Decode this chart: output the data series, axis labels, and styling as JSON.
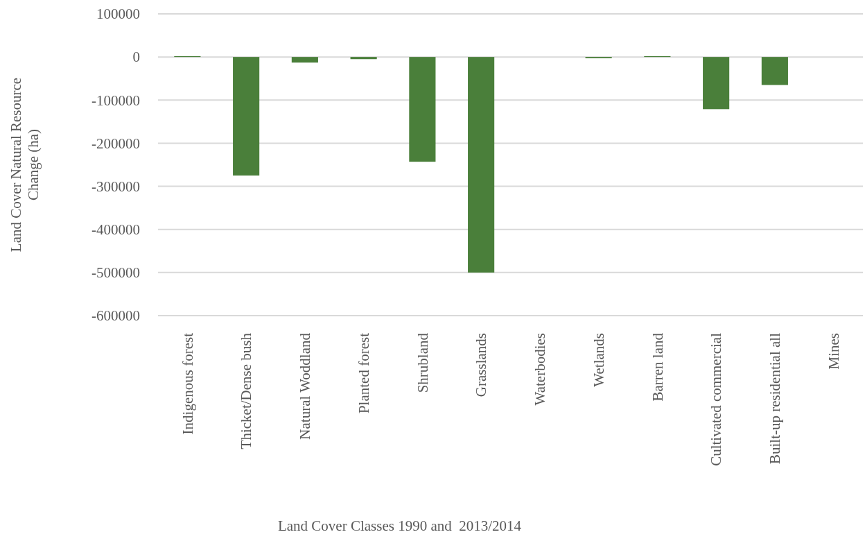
{
  "chart_data": {
    "type": "bar",
    "xlabel": "Land Cover Classes 1990 and  2013/2014",
    "ylabel": "Land Cover Natural Resource Change (ha)",
    "categories": [
      "Indigenous forest",
      "Thicket/Dense bush",
      "Natural Woddland",
      "Planted forest",
      "Shrubland",
      "Grasslands",
      "Waterbodies",
      "Wetlands",
      "Barren land",
      "Cultivated commercial",
      "Built-up residential all",
      "Mines"
    ],
    "values": [
      2000,
      -275000,
      -13000,
      -5000,
      -243000,
      -500000,
      0,
      -3000,
      2000,
      -121000,
      -65000,
      0
    ],
    "color": "#4a7f3a",
    "ylim": [
      -600000,
      100000
    ],
    "yticks": [
      100000,
      0,
      -100000,
      -200000,
      -300000,
      -400000,
      -500000,
      -600000
    ],
    "grid": "y"
  }
}
